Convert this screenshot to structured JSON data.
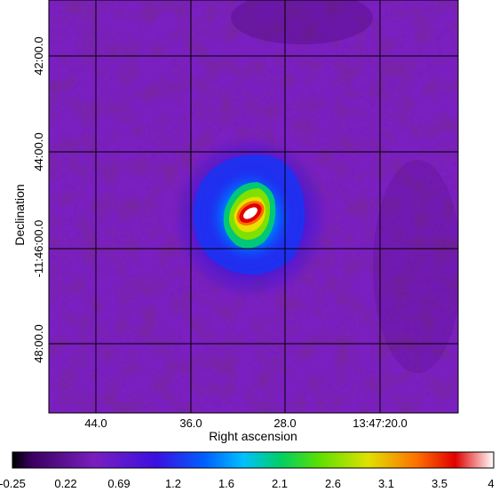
{
  "image": {
    "colormap": "sky-style: black → purple → blue → cyan → green → yellow → red → white",
    "background_color": "#7a1fc0",
    "source": {
      "shape": "extended bright blob with compact central peak",
      "core_color": "#ffffff",
      "ring_color": "#e00000"
    }
  },
  "axes": {
    "xlabel": "Right ascension",
    "ylabel": "Declination",
    "x_ticks": [
      "44.0",
      "36.0",
      "28.0",
      "13:47:20.0"
    ],
    "y_ticks": [
      "42:00.0",
      "44:00.0",
      "-11:46:00.0",
      "48:00.0"
    ]
  },
  "colorbar": {
    "ticks": [
      "-0.25",
      "0.22",
      "0.69",
      "1.2",
      "1.6",
      "2.1",
      "2.6",
      "3.1",
      "3.5",
      "4"
    ],
    "colors": {
      "c0": "#000000",
      "c1": "#3a0060",
      "c2": "#7a1fc0",
      "c3": "#3a10e0",
      "c4": "#0060ff",
      "c5": "#00c0ff",
      "c6": "#00d060",
      "c7": "#60e000",
      "c8": "#e0e000",
      "c9": "#ff7000",
      "c10": "#e00000",
      "c11": "#ffffff"
    }
  }
}
